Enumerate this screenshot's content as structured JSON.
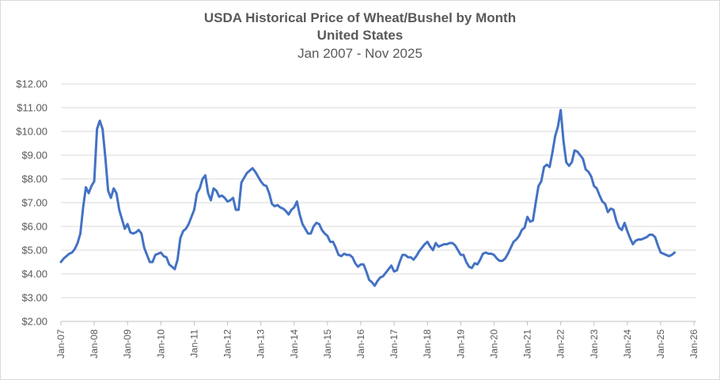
{
  "chart_data": {
    "type": "line",
    "title": "USDA Historical Price of Wheat/Bushel by Month",
    "subtitle": "United States",
    "date_range": "Jan 2007 - Nov 2025",
    "xlabel": "",
    "ylabel": "",
    "ylim": [
      2.0,
      12.0
    ],
    "y_tick_labels": [
      "$2.00",
      "$3.00",
      "$4.00",
      "$5.00",
      "$6.00",
      "$7.00",
      "$8.00",
      "$9.00",
      "$10.00",
      "$11.00",
      "$12.00"
    ],
    "y_tick_values": [
      2,
      3,
      4,
      5,
      6,
      7,
      8,
      9,
      10,
      11,
      12
    ],
    "x_tick_labels": [
      "Jan-07",
      "Jan-08",
      "Jan-09",
      "Jan-10",
      "Jan-11",
      "Jan-12",
      "Jan-13",
      "Jan-14",
      "Jan-15",
      "Jan-16",
      "Jan-17",
      "Jan-18",
      "Jan-19",
      "Jan-20",
      "Jan-21",
      "Jan-22",
      "Jan-23",
      "Jan-24",
      "Jan-25",
      "Jan-26"
    ],
    "grid": "horizontal",
    "line_color": "#4472c4",
    "series": [
      {
        "name": "",
        "start": "2007-01",
        "frequency": "monthly",
        "values": [
          4.5,
          4.65,
          4.75,
          4.85,
          4.9,
          5.05,
          5.3,
          5.7,
          6.8,
          7.65,
          7.4,
          7.7,
          7.9,
          10.1,
          10.45,
          10.1,
          8.9,
          7.5,
          7.2,
          7.6,
          7.4,
          6.7,
          6.3,
          5.9,
          6.1,
          5.75,
          5.7,
          5.75,
          5.85,
          5.7,
          5.1,
          4.8,
          4.5,
          4.5,
          4.8,
          4.85,
          4.9,
          4.75,
          4.7,
          4.4,
          4.3,
          4.2,
          4.6,
          5.5,
          5.8,
          5.9,
          6.1,
          6.4,
          6.7,
          7.4,
          7.6,
          8.0,
          8.15,
          7.4,
          7.1,
          7.6,
          7.5,
          7.25,
          7.3,
          7.2,
          7.05,
          7.1,
          7.2,
          6.7,
          6.7,
          7.85,
          8.05,
          8.25,
          8.35,
          8.45,
          8.3,
          8.1,
          7.9,
          7.75,
          7.7,
          7.4,
          6.95,
          6.85,
          6.9,
          6.8,
          6.75,
          6.65,
          6.5,
          6.7,
          6.8,
          7.05,
          6.5,
          6.1,
          5.9,
          5.7,
          5.7,
          6.0,
          6.15,
          6.1,
          5.85,
          5.7,
          5.6,
          5.35,
          5.35,
          5.1,
          4.8,
          4.75,
          4.85,
          4.8,
          4.8,
          4.7,
          4.45,
          4.3,
          4.4,
          4.4,
          4.1,
          3.75,
          3.65,
          3.5,
          3.7,
          3.85,
          3.9,
          4.05,
          4.2,
          4.35,
          4.1,
          4.15,
          4.5,
          4.8,
          4.8,
          4.7,
          4.7,
          4.6,
          4.75,
          4.95,
          5.1,
          5.25,
          5.35,
          5.15,
          5.0,
          5.3,
          5.15,
          5.2,
          5.25,
          5.25,
          5.3,
          5.3,
          5.2,
          5.0,
          4.8,
          4.8,
          4.5,
          4.3,
          4.25,
          4.45,
          4.4,
          4.6,
          4.85,
          4.9,
          4.85,
          4.85,
          4.8,
          4.65,
          4.55,
          4.55,
          4.65,
          4.85,
          5.1,
          5.35,
          5.45,
          5.6,
          5.85,
          5.95,
          6.4,
          6.2,
          6.25,
          7.0,
          7.7,
          7.9,
          8.5,
          8.6,
          8.5,
          9.1,
          9.8,
          10.2,
          10.9,
          9.6,
          8.7,
          8.55,
          8.7,
          9.2,
          9.15,
          9.0,
          8.85,
          8.4,
          8.3,
          8.1,
          7.7,
          7.6,
          7.3,
          7.05,
          6.95,
          6.6,
          6.75,
          6.7,
          6.25,
          5.95,
          5.85,
          6.15,
          5.8,
          5.5,
          5.25,
          5.4,
          5.45,
          5.45,
          5.5,
          5.55,
          5.65,
          5.65,
          5.55,
          5.2,
          4.9,
          4.85,
          4.8,
          4.75,
          4.8,
          4.9
        ]
      }
    ]
  }
}
